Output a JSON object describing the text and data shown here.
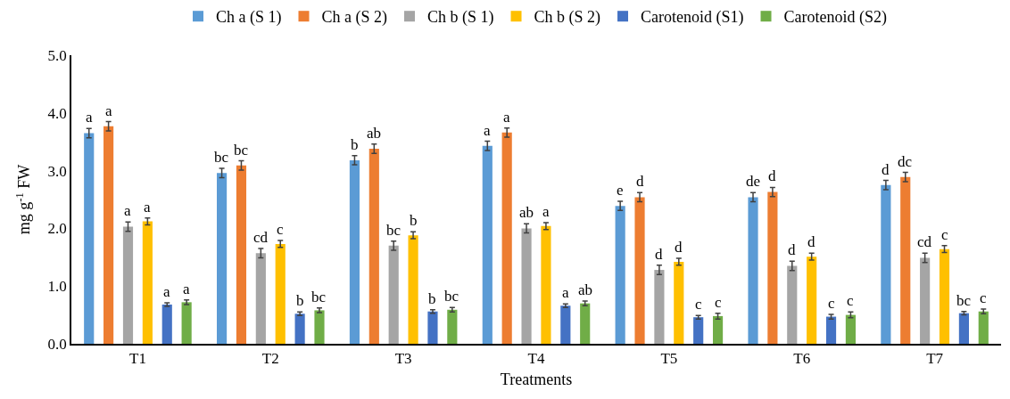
{
  "chart_data": {
    "type": "bar",
    "xlabel": "Treatments",
    "ylabel": "mg g$^{-1}$ FW",
    "categories": [
      "T1",
      "T2",
      "T3",
      "T4",
      "T5",
      "T6",
      "T7"
    ],
    "ylim": [
      0,
      5
    ],
    "yticks": [
      {
        "value": 0,
        "label": "0.0"
      },
      {
        "value": 1,
        "label": "1.0"
      },
      {
        "value": 2,
        "label": "2.0"
      },
      {
        "value": 3,
        "label": "3.0"
      },
      {
        "value": 4,
        "label": "4.0"
      },
      {
        "value": 5,
        "label": "5.0"
      }
    ],
    "legend": "top",
    "series": [
      {
        "name": "Ch a (S 1)",
        "color": "#5b9bd5",
        "values": [
          3.65,
          2.96,
          3.18,
          3.43,
          2.39,
          2.54,
          2.75
        ],
        "errors": [
          0.08,
          0.08,
          0.08,
          0.08,
          0.08,
          0.08,
          0.08
        ],
        "value_labels": [
          "a",
          "bc",
          "b",
          "a",
          "e",
          "de",
          "d"
        ]
      },
      {
        "name": "Ch a (S 2)",
        "color": "#ed7d31",
        "values": [
          3.77,
          3.09,
          3.38,
          3.66,
          2.54,
          2.63,
          2.89
        ],
        "errors": [
          0.08,
          0.08,
          0.08,
          0.08,
          0.08,
          0.08,
          0.08
        ],
        "value_labels": [
          "a",
          "bc",
          "ab",
          "a",
          "d",
          "d",
          "dc"
        ]
      },
      {
        "name": "Ch b (S 1)",
        "color": "#a5a5a5",
        "values": [
          2.03,
          1.57,
          1.7,
          2.0,
          1.28,
          1.35,
          1.49
        ],
        "errors": [
          0.08,
          0.08,
          0.08,
          0.08,
          0.08,
          0.08,
          0.08
        ],
        "value_labels": [
          "a",
          "cd",
          "bc",
          "ab",
          "d",
          "d",
          "cd"
        ]
      },
      {
        "name": "Ch b (S 2)",
        "color": "#ffc000",
        "values": [
          2.12,
          1.73,
          1.88,
          2.04,
          1.42,
          1.51,
          1.64
        ],
        "errors": [
          0.06,
          0.06,
          0.06,
          0.06,
          0.06,
          0.06,
          0.06
        ],
        "value_labels": [
          "a",
          "c",
          "b",
          "a",
          "d",
          "d",
          "c"
        ]
      },
      {
        "name": "Carotenoid (S1)",
        "color": "#4472c4",
        "values": [
          0.68,
          0.52,
          0.56,
          0.66,
          0.46,
          0.47,
          0.53
        ],
        "errors": [
          0.03,
          0.03,
          0.03,
          0.03,
          0.03,
          0.04,
          0.03
        ],
        "value_labels": [
          "a",
          "b",
          "b",
          "a",
          "c",
          "c",
          "bc"
        ]
      },
      {
        "name": "Carotenoid (S2)",
        "color": "#70ad47",
        "values": [
          0.72,
          0.58,
          0.59,
          0.7,
          0.48,
          0.5,
          0.56
        ],
        "errors": [
          0.04,
          0.04,
          0.04,
          0.04,
          0.05,
          0.05,
          0.04
        ],
        "value_labels": [
          "a",
          "bc",
          "bc",
          "ab",
          "c",
          "c",
          "c"
        ]
      }
    ]
  }
}
